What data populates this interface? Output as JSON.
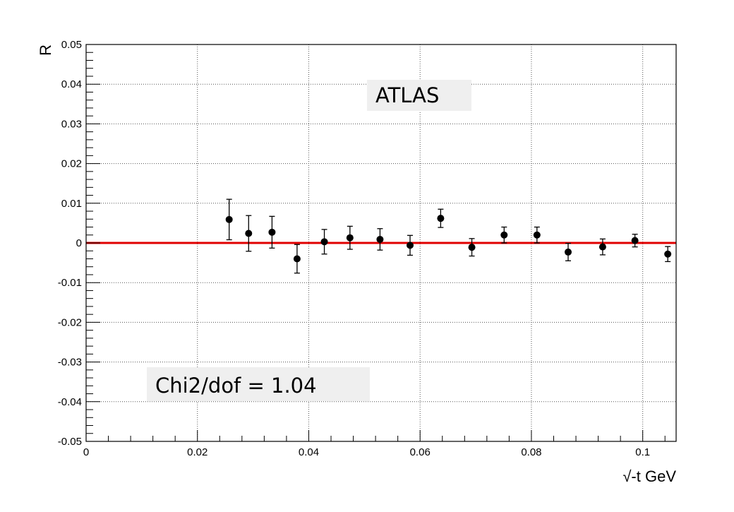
{
  "chart_data": {
    "type": "scatter",
    "title": "",
    "xlabel": "√-t GeV",
    "ylabel": "R",
    "xlim": [
      0,
      0.106
    ],
    "ylim": [
      -0.05,
      0.05
    ],
    "xticks": [
      {
        "value": 0,
        "label": "0"
      },
      {
        "value": 0.02,
        "label": "0.02"
      },
      {
        "value": 0.04,
        "label": "0.04"
      },
      {
        "value": 0.06,
        "label": "0.06"
      },
      {
        "value": 0.08,
        "label": "0.08"
      },
      {
        "value": 0.1,
        "label": "0.1"
      }
    ],
    "yticks": [
      {
        "value": 0.05,
        "label": "0.05"
      },
      {
        "value": 0.04,
        "label": "0.04"
      },
      {
        "value": 0.03,
        "label": "0.03"
      },
      {
        "value": 0.02,
        "label": "0.02"
      },
      {
        "value": 0.01,
        "label": "0.01"
      },
      {
        "value": 0,
        "label": "0"
      },
      {
        "value": -0.01,
        "label": "-0.01"
      },
      {
        "value": -0.02,
        "label": "-0.02"
      },
      {
        "value": -0.03,
        "label": "-0.03"
      },
      {
        "value": -0.04,
        "label": "-0.04"
      },
      {
        "value": -0.05,
        "label": "-0.05"
      }
    ],
    "grid": true,
    "grid_style": "dotted",
    "series": [
      {
        "points": [
          {
            "x": 0.0257,
            "y": 0.0059,
            "err": 0.0051
          },
          {
            "x": 0.0292,
            "y": 0.0024,
            "err": 0.0045
          },
          {
            "x": 0.0334,
            "y": 0.0027,
            "err": 0.004
          },
          {
            "x": 0.0379,
            "y": -0.004,
            "err": 0.0036
          },
          {
            "x": 0.0428,
            "y": 0.0003,
            "err": 0.0031
          },
          {
            "x": 0.0474,
            "y": 0.0013,
            "err": 0.0029
          },
          {
            "x": 0.0528,
            "y": 0.0009,
            "err": 0.0027
          },
          {
            "x": 0.0582,
            "y": -0.0006,
            "err": 0.0025
          },
          {
            "x": 0.0637,
            "y": 0.0062,
            "err": 0.0023
          },
          {
            "x": 0.0693,
            "y": -0.0011,
            "err": 0.0022
          },
          {
            "x": 0.0751,
            "y": 0.002,
            "err": 0.002
          },
          {
            "x": 0.081,
            "y": 0.002,
            "err": 0.002
          },
          {
            "x": 0.0866,
            "y": -0.0023,
            "err": 0.0022
          },
          {
            "x": 0.0928,
            "y": -0.001,
            "err": 0.002
          },
          {
            "x": 0.0986,
            "y": 0.0006,
            "err": 0.0016
          },
          {
            "x": 0.1045,
            "y": -0.0028,
            "err": 0.0019
          }
        ],
        "color": "#000000"
      }
    ],
    "fit_line": {
      "y": 0,
      "color": "#e00000"
    },
    "annotations": [
      {
        "text": "ATLAS",
        "position": "top-center"
      },
      {
        "text": "Chi2/dof =  1.04",
        "position": "bottom-left"
      }
    ]
  }
}
